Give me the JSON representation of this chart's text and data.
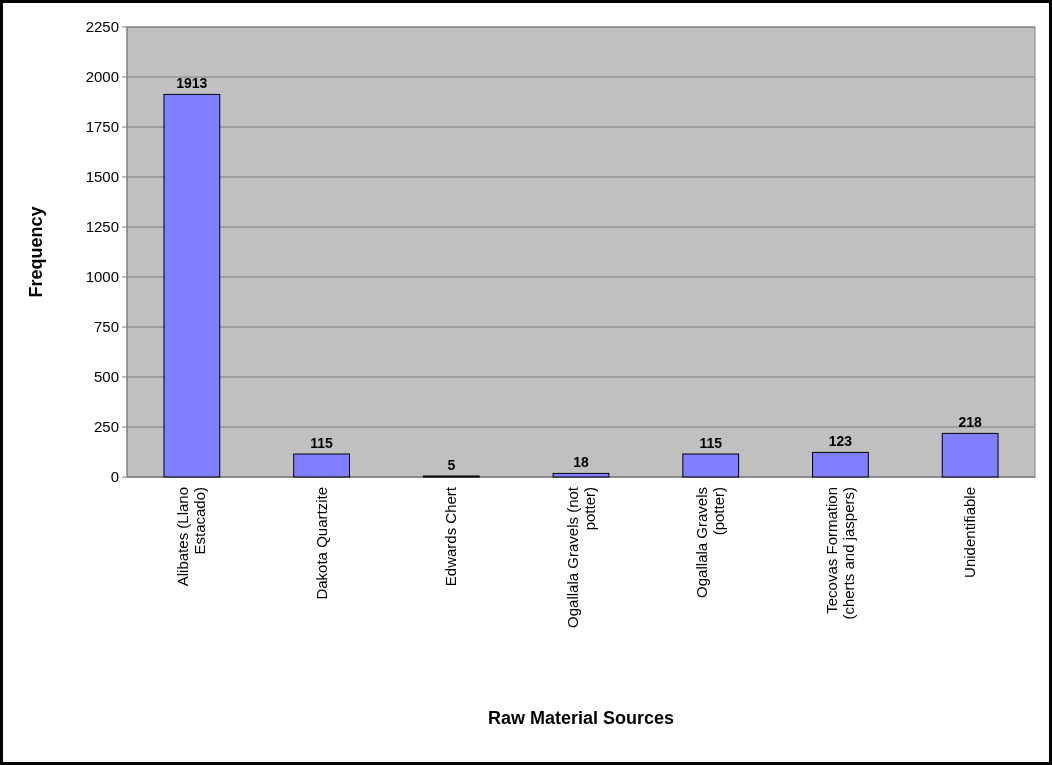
{
  "chart_data": {
    "type": "bar",
    "xlabel": "Raw Material Sources",
    "ylabel": "Frequency",
    "categories": [
      "Alibates (Llano Estacado)",
      "Dakota Quartzite",
      "Edwards Chert",
      "Ogallala Gravels (not potter)",
      "Ogallala Gravels (potter)",
      "Tecovas Formation (cherts and jaspers)",
      "Unidentifiable"
    ],
    "values": [
      1913,
      115,
      5,
      18,
      115,
      123,
      218
    ],
    "color": "#7f7fff",
    "data_labels": true,
    "grid": "y",
    "ylim": [
      0,
      2250
    ],
    "yticks": [
      0,
      250,
      500,
      750,
      1000,
      1250,
      1500,
      1750,
      2000,
      2250
    ]
  }
}
